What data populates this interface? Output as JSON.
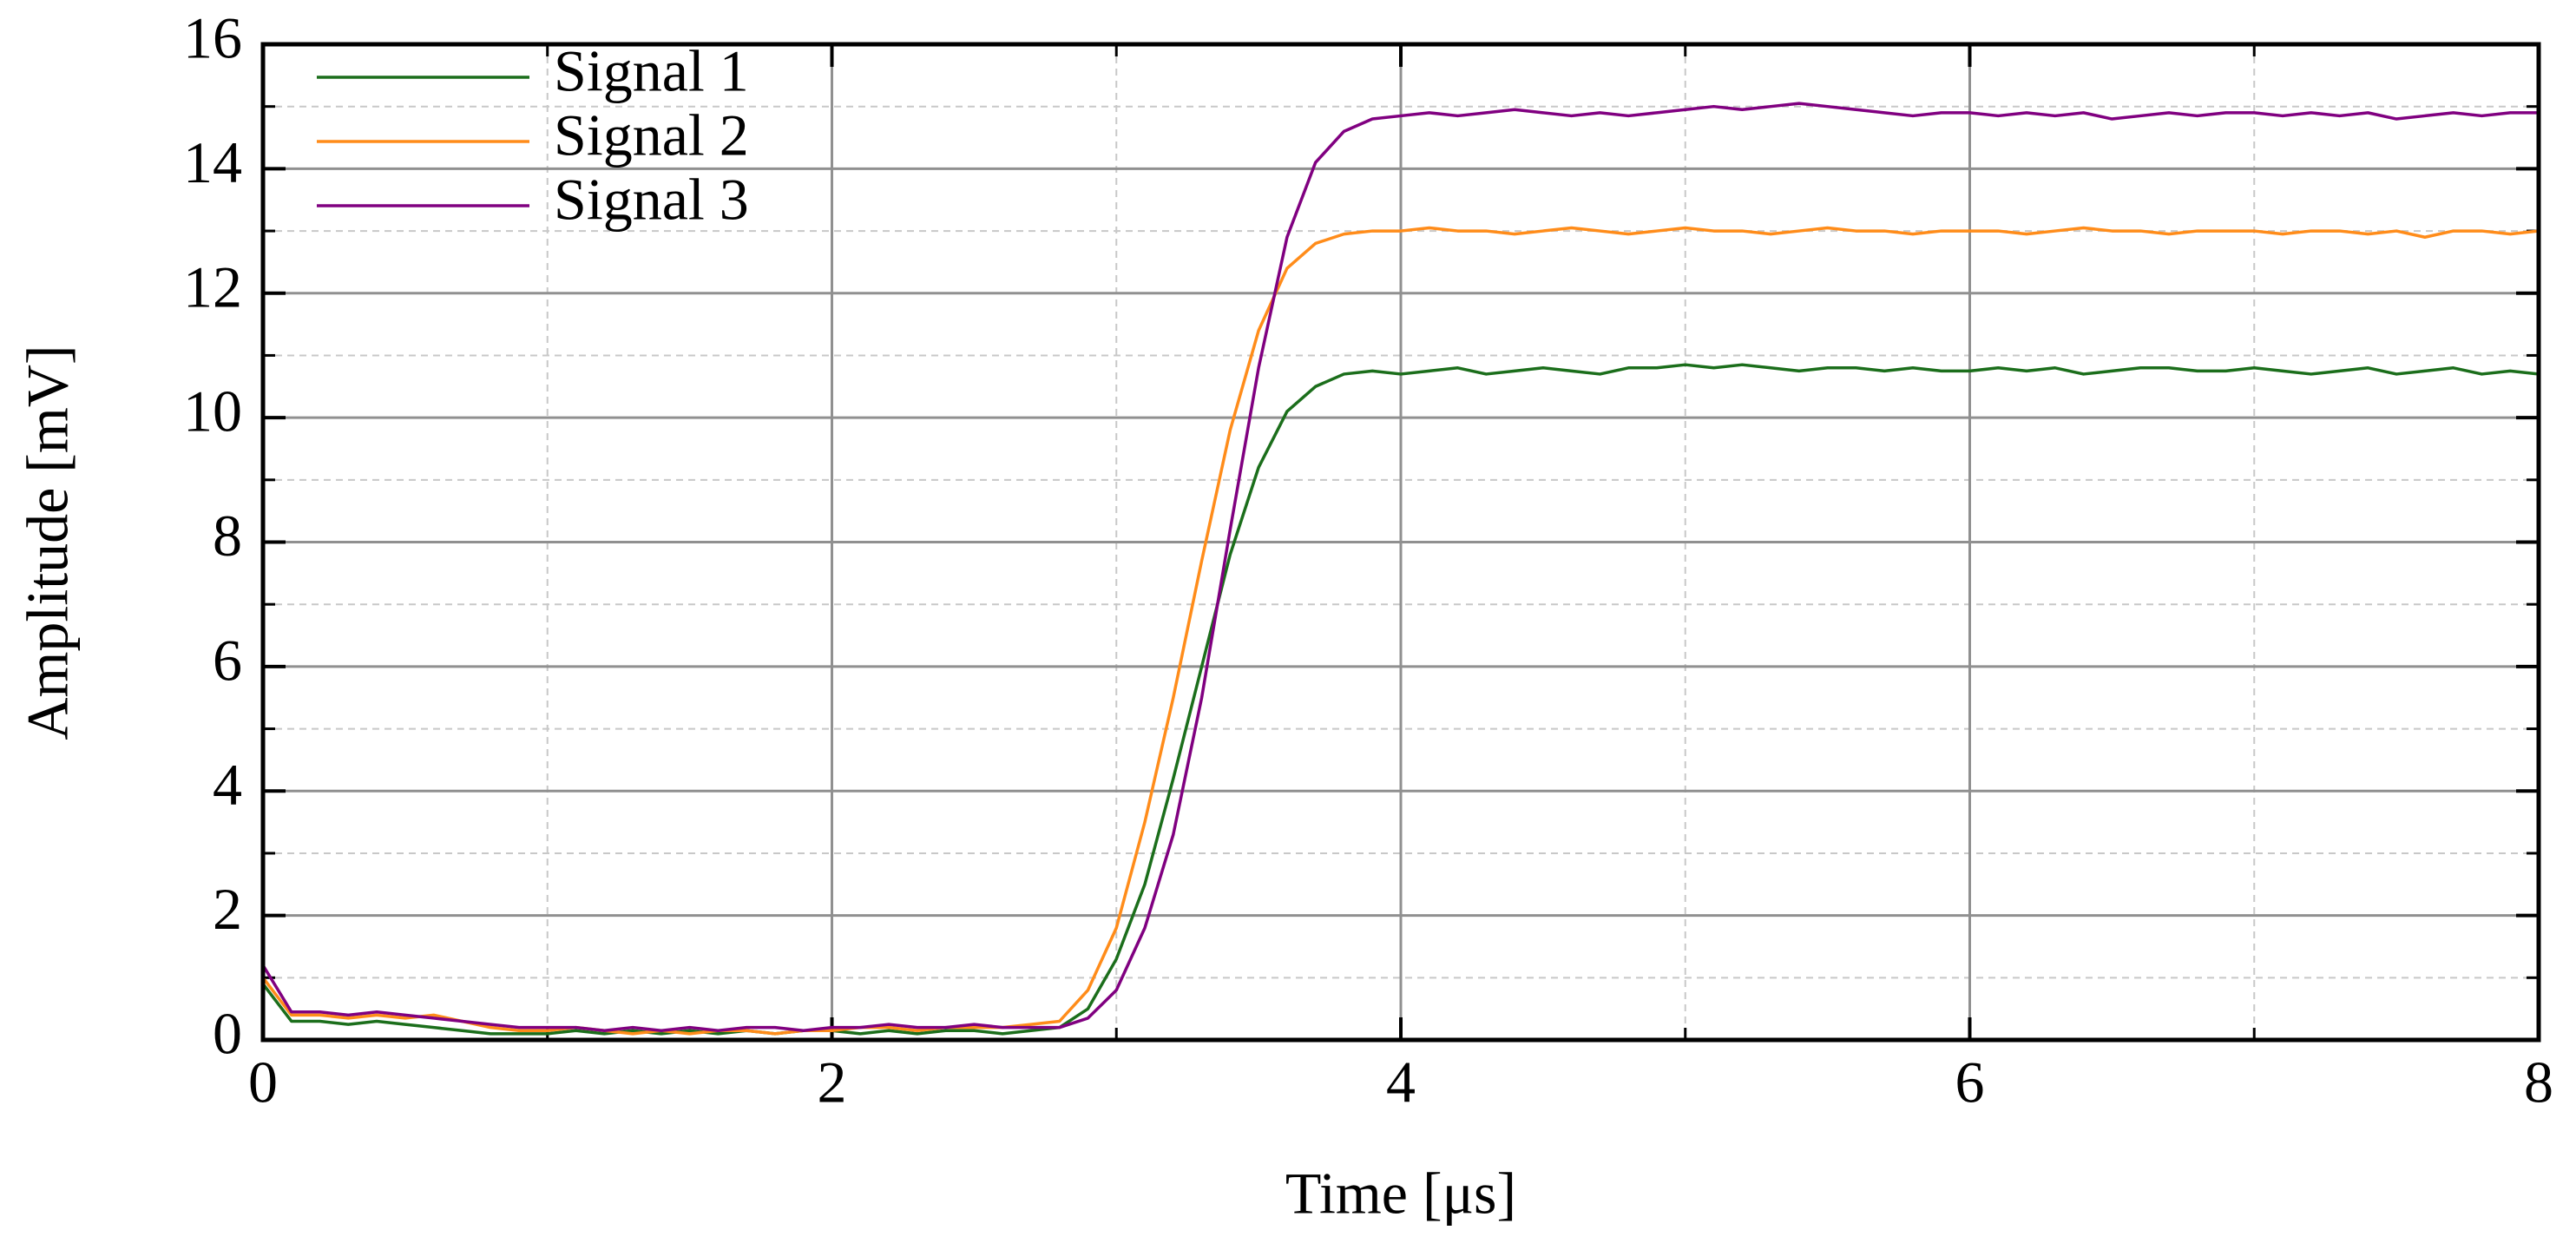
{
  "chart_data": {
    "type": "line",
    "xlabel": "Time [μs]",
    "ylabel": "Amplitude [mV]",
    "x": [
      0,
      0.1,
      0.2,
      0.3,
      0.4,
      0.5,
      0.6,
      0.7,
      0.8,
      0.9,
      1,
      1.1,
      1.2,
      1.3,
      1.4,
      1.5,
      1.6,
      1.7,
      1.8,
      1.9,
      2,
      2.1,
      2.2,
      2.3,
      2.4,
      2.5,
      2.6,
      2.7,
      2.8,
      2.9,
      3,
      3.1,
      3.2,
      3.3,
      3.4,
      3.5,
      3.6,
      3.7,
      3.8,
      3.9,
      4,
      4.1,
      4.2,
      4.3,
      4.4,
      4.5,
      4.6,
      4.7,
      4.8,
      4.9,
      5,
      5.1,
      5.2,
      5.3,
      5.4,
      5.5,
      5.6,
      5.7,
      5.8,
      5.9,
      6,
      6.1,
      6.2,
      6.3,
      6.4,
      6.5,
      6.6,
      6.7,
      6.8,
      6.9,
      7,
      7.1,
      7.2,
      7.3,
      7.4,
      7.5,
      7.6,
      7.7,
      7.8,
      7.9,
      8
    ],
    "series": [
      {
        "name": "Signal 1",
        "color": "#1b6e1b",
        "values": [
          0.9,
          0.3,
          0.3,
          0.25,
          0.3,
          0.25,
          0.2,
          0.15,
          0.1,
          0.1,
          0.1,
          0.15,
          0.1,
          0.15,
          0.1,
          0.15,
          0.1,
          0.15,
          0.1,
          0.15,
          0.15,
          0.1,
          0.15,
          0.1,
          0.15,
          0.15,
          0.1,
          0.15,
          0.2,
          0.5,
          1.3,
          2.5,
          4.2,
          6.0,
          7.8,
          9.2,
          10.1,
          10.5,
          10.7,
          10.75,
          10.7,
          10.75,
          10.8,
          10.7,
          10.75,
          10.8,
          10.75,
          10.7,
          10.8,
          10.8,
          10.85,
          10.8,
          10.85,
          10.8,
          10.75,
          10.8,
          10.8,
          10.75,
          10.8,
          10.75,
          10.75,
          10.8,
          10.75,
          10.8,
          10.7,
          10.75,
          10.8,
          10.8,
          10.75,
          10.75,
          10.8,
          10.75,
          10.7,
          10.75,
          10.8,
          10.7,
          10.75,
          10.8,
          10.7,
          10.75,
          10.7
        ]
      },
      {
        "name": "Signal 2",
        "color": "#ff8c1a",
        "values": [
          1.0,
          0.4,
          0.4,
          0.35,
          0.4,
          0.35,
          0.4,
          0.3,
          0.2,
          0.15,
          0.15,
          0.2,
          0.15,
          0.1,
          0.15,
          0.1,
          0.15,
          0.15,
          0.1,
          0.15,
          0.15,
          0.2,
          0.2,
          0.15,
          0.2,
          0.2,
          0.2,
          0.25,
          0.3,
          0.8,
          1.8,
          3.5,
          5.5,
          7.7,
          9.8,
          11.4,
          12.4,
          12.8,
          12.95,
          13.0,
          13.0,
          13.05,
          13.0,
          13.0,
          12.95,
          13.0,
          13.05,
          13.0,
          12.95,
          13.0,
          13.05,
          13.0,
          13.0,
          12.95,
          13.0,
          13.05,
          13.0,
          13.0,
          12.95,
          13.0,
          13.0,
          13.0,
          12.95,
          13.0,
          13.05,
          13.0,
          13.0,
          12.95,
          13.0,
          13.0,
          13.0,
          12.95,
          13.0,
          13.0,
          12.95,
          13.0,
          12.9,
          13.0,
          13.0,
          12.95,
          13.0
        ]
      },
      {
        "name": "Signal 3",
        "color": "#800080",
        "values": [
          1.2,
          0.45,
          0.45,
          0.4,
          0.45,
          0.4,
          0.35,
          0.3,
          0.25,
          0.2,
          0.2,
          0.2,
          0.15,
          0.2,
          0.15,
          0.2,
          0.15,
          0.2,
          0.2,
          0.15,
          0.2,
          0.2,
          0.25,
          0.2,
          0.2,
          0.25,
          0.2,
          0.2,
          0.2,
          0.35,
          0.8,
          1.8,
          3.3,
          5.5,
          8.2,
          10.8,
          12.9,
          14.1,
          14.6,
          14.8,
          14.85,
          14.9,
          14.85,
          14.9,
          14.95,
          14.9,
          14.85,
          14.9,
          14.85,
          14.9,
          14.95,
          15.0,
          14.95,
          15.0,
          15.05,
          15.0,
          14.95,
          14.9,
          14.85,
          14.9,
          14.9,
          14.85,
          14.9,
          14.85,
          14.9,
          14.8,
          14.85,
          14.9,
          14.85,
          14.9,
          14.9,
          14.85,
          14.9,
          14.85,
          14.9,
          14.8,
          14.85,
          14.9,
          14.85,
          14.9,
          14.9
        ]
      }
    ],
    "xlim": [
      0,
      8
    ],
    "ylim": [
      0,
      16
    ],
    "xticks": [
      0,
      2,
      4,
      6,
      8
    ],
    "yticks": [
      0,
      2,
      4,
      6,
      8,
      10,
      12,
      14,
      16
    ],
    "xminorticks": [
      1,
      3,
      5,
      7
    ],
    "yminorticks": [
      1,
      3,
      5,
      7,
      9,
      11,
      13,
      15
    ],
    "grid": true,
    "legend": "upper left"
  }
}
